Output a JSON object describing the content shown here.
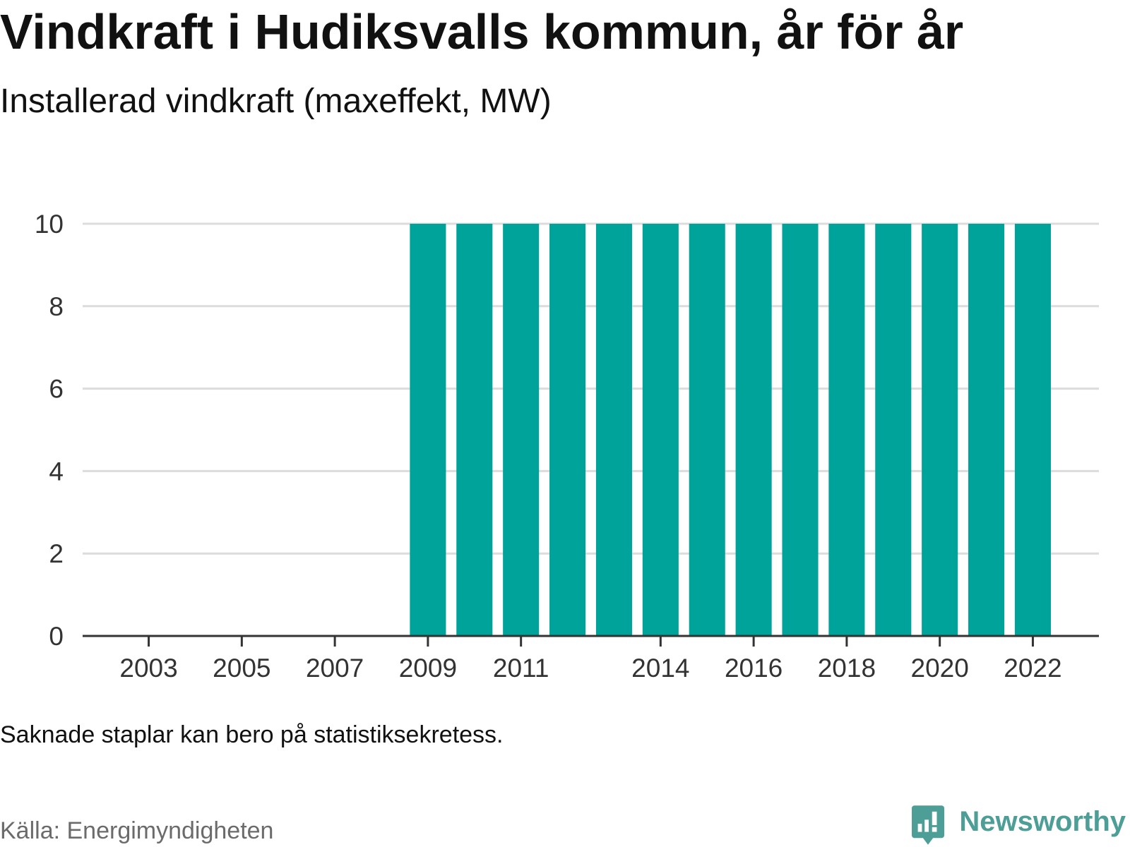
{
  "chart_data": {
    "type": "bar",
    "title": "Vindkraft i Hudiksvalls kommun, år för år",
    "subtitle": "Installerad vindkraft (maxeffekt, MW)",
    "x": [
      2003,
      2004,
      2005,
      2006,
      2007,
      2008,
      2009,
      2010,
      2011,
      2012,
      2013,
      2014,
      2015,
      2016,
      2017,
      2018,
      2019,
      2020,
      2021,
      2022
    ],
    "values": [
      null,
      null,
      null,
      null,
      null,
      null,
      10,
      10,
      10,
      10,
      10,
      10,
      10,
      10,
      10,
      10,
      10,
      10,
      10,
      10
    ],
    "x_ticks": [
      2003,
      2005,
      2007,
      2009,
      2011,
      2014,
      2016,
      2018,
      2020,
      2022
    ],
    "y_ticks": [
      0,
      2,
      4,
      6,
      8,
      10
    ],
    "ylim": [
      0,
      10
    ],
    "grid": true
  },
  "footer": {
    "note": "Saknade staplar kan bero på statistiksekretess.",
    "source": "Källa: Energimyndigheten"
  },
  "brand": {
    "name": "Newsworthy",
    "icon": "newsworthy-logo-icon"
  },
  "colors": {
    "bar": "#00a39a",
    "brand": "#4d9e96",
    "gridline": "#dcdcdc",
    "axis": "#333333"
  }
}
